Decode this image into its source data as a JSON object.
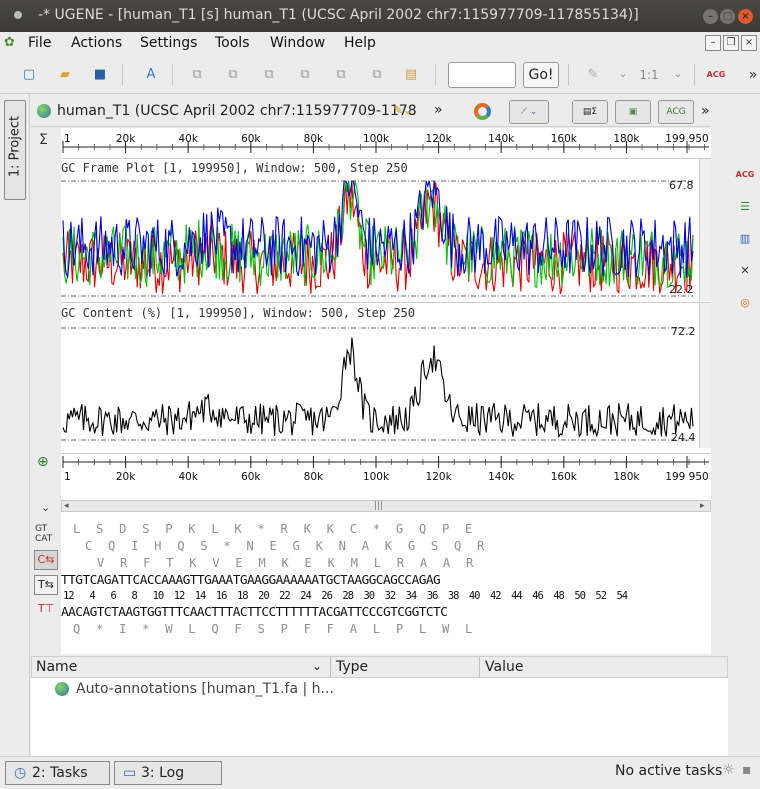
{
  "window": {
    "title": "-* UGENE - [human_T1 [s] human_T1 (UCSC April 2002 chr7:115977709-117855134)]"
  },
  "menu": [
    "File",
    "Actions",
    "Settings",
    "Tools",
    "Window",
    "Help"
  ],
  "toolbar": {
    "go_label": "Go!",
    "zoom_label": "1:1"
  },
  "left_tab": {
    "label": "1: Project"
  },
  "sequence": {
    "title": "human_T1 (UCSC April 2002 chr7:115977709-1178"
  },
  "ruler": {
    "ticks": [
      "1",
      "20k",
      "40k",
      "60k",
      "80k",
      "100k",
      "120k",
      "140k",
      "160k",
      "180k",
      "199 950"
    ],
    "max": 199950
  },
  "gc_frame": {
    "label": "GC Frame Plot [1, 199950], Window: 500, Step 250",
    "max": "67.8",
    "min": "22.2",
    "series_colors": [
      "#e00000",
      "#00c000",
      "#0000e0"
    ]
  },
  "gc_content": {
    "label": "GC Content (%) [1, 199950], Window: 500, Step 250",
    "max": "72.2",
    "min": "24.4"
  },
  "bottom_ruler": {
    "ticks": [
      "1",
      "20k",
      "40k",
      "60k",
      "80k",
      "100k",
      "120k",
      "140k",
      "160k",
      "180k",
      "199 950"
    ]
  },
  "seq_view": {
    "frame1": "L  S  D  S  P  K  L  K  *  R  K  K  C  *  G  Q  P  E",
    "frame2": "C  Q  I  H  Q  S  *  N  E  G  K  N  A  K  G  S  Q  R",
    "frame3": "V  R  F  T  K  V  E  M  K  E  K  M  L  R  A  A  R",
    "direct": "TTGTCAGATTCACCAAAGTTGAAATGAAGGAAAAAATGCTAAGGCAGCCAGAG",
    "positions": "12   4   6   8   10  12  14  16  18  20  22  24  26  28  30  32  34  36  38  40  42  44  46  48  50  52  54",
    "complement": "AACAGTCTAAGTGGTTTCAACTTTACTTCCTTTTTTACGATTCCCGTCGGTCTC",
    "rev_frame": "Q  *  I  *  W  L  Q  F  S  P  F  F  A  L  P  L  W  L",
    "left_labels": [
      "GT",
      "CAT"
    ]
  },
  "annotations": {
    "columns": [
      "Name",
      "Type",
      "Value"
    ],
    "rows": [
      {
        "name": "Auto-annotations [human_T1.fa | h..."
      }
    ]
  },
  "status": {
    "tab_tasks": "2: Tasks",
    "tab_log": "3: Log",
    "text": "No active tasks"
  }
}
